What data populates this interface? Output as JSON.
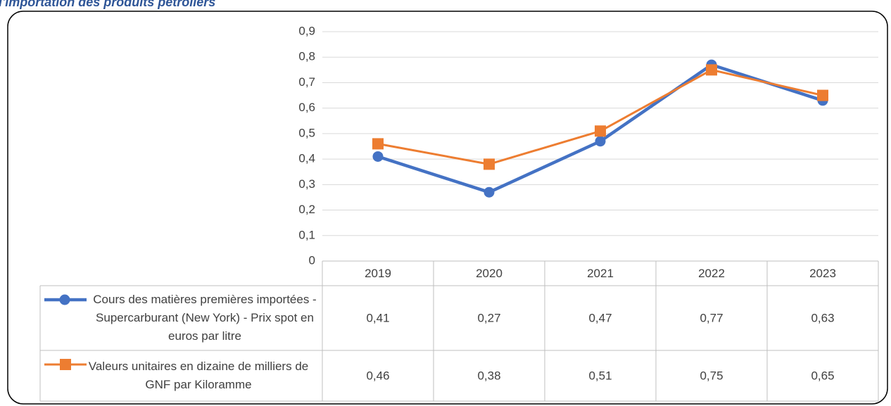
{
  "chart_data": {
    "type": "line",
    "title": "l'importation des produits pétroliers",
    "categories": [
      "2019",
      "2020",
      "2021",
      "2022",
      "2023"
    ],
    "series": [
      {
        "name": "Cours des matières premières importées - Supercarburant (New York) - Prix spot en euros par litre",
        "color": "#4472c4",
        "marker": "circle",
        "values": [
          0.41,
          0.27,
          0.47,
          0.77,
          0.63
        ],
        "value_labels": [
          "0,41",
          "0,27",
          "0,47",
          "0,77",
          "0,63"
        ]
      },
      {
        "name": "Valeurs unitaires en dizaine de milliers de GNF par Kiloramme",
        "color": "#ed7d31",
        "marker": "square",
        "values": [
          0.46,
          0.38,
          0.51,
          0.75,
          0.65
        ],
        "value_labels": [
          "0,46",
          "0,38",
          "0,51",
          "0,75",
          "0,65"
        ]
      }
    ],
    "ylim": [
      0,
      0.9
    ],
    "yticks": [
      0,
      {
        "value": 0.1,
        "label": "0,1"
      },
      {
        "value": 0.2,
        "label": "0,2"
      },
      {
        "value": 0.3,
        "label": "0,3"
      },
      {
        "value": 0.4,
        "label": "0,4"
      },
      {
        "value": 0.5,
        "label": "0,5"
      },
      {
        "value": 0.6,
        "label": "0,6"
      },
      {
        "value": 0.7,
        "label": "0,7"
      },
      {
        "value": 0.8,
        "label": "0,8"
      },
      {
        "value": 0.9,
        "label": "0,9"
      }
    ],
    "grid": true,
    "data_table": true
  }
}
